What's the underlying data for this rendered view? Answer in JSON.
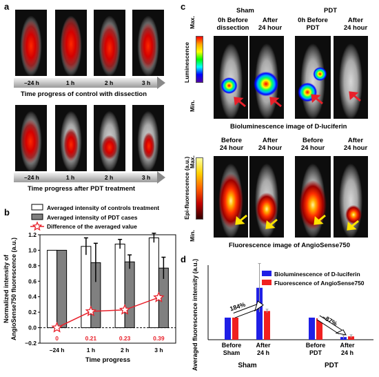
{
  "panel_a": {
    "label": "a",
    "row1_times": [
      "–24 h",
      "1 h",
      "2 h",
      "3 h"
    ],
    "row1_title": "Time progress of control with dissection",
    "row2_times": [
      "–24 h",
      "1 h",
      "2 h",
      "3 h"
    ],
    "row2_title": "Time progress after PDT treatment"
  },
  "panel_c": {
    "label": "c",
    "group_sham": "Sham",
    "group_pdt": "PDT",
    "col_headers_top": [
      "0h Before\ndissection",
      "After\n24 hour",
      "0h Before\nPDT",
      "After\n24 hour"
    ],
    "col_headers_bottom": [
      "Before\n24 hour",
      "After\n24 hour",
      "Before\n24 hour",
      "After\n24 hour"
    ],
    "lum_bar_title": "Luminescence",
    "lum_max": "Max.",
    "lum_min": "Min.",
    "lum_caption": "Bioluminescence image of D-luciferin",
    "epi_bar_title": "Epi-fluorescence (a.u.)",
    "epi_max": "Max.",
    "epi_min": "Min.",
    "epi_caption": "Fluorescence image of AngioSense750"
  },
  "colors": {
    "red_arrow": "#e8202a",
    "yellow_arrow": "#ffe400",
    "blue_bar": "#1f1fe6",
    "red_bar": "#f02020",
    "star": "#e8202a"
  },
  "chart_data": [
    {
      "panel": "b",
      "type": "bar",
      "label": "b",
      "categories": [
        "–24 h",
        "1 h",
        "2 h",
        "3 h"
      ],
      "xlabel": "Time progress",
      "ylabel": "Normalized intensity of AngioSense750 fluorescence (a.u.)",
      "ylim": [
        -0.2,
        1.2
      ],
      "yticks": [
        "−0.2",
        "0.0",
        "0.2",
        "0.4",
        "0.6",
        "0.8",
        "1.0",
        "1.2"
      ],
      "series": [
        {
          "name": "Averaged intensity of controls treatment",
          "values": [
            1.0,
            1.05,
            1.08,
            1.16
          ],
          "err": [
            0,
            0.11,
            0.06,
            0.06
          ]
        },
        {
          "name": "Averaged intensity of PDT cases",
          "values": [
            1.0,
            0.84,
            0.85,
            0.77
          ],
          "err": [
            0,
            0.25,
            0.09,
            0.14
          ]
        },
        {
          "name": "Difference of the averaged value",
          "values": [
            0.0,
            0.21,
            0.23,
            0.39
          ],
          "labels": [
            "0",
            "0.21",
            "0.23",
            "0.39"
          ]
        }
      ],
      "legend": "top"
    },
    {
      "panel": "d",
      "type": "bar",
      "label": "d",
      "groups": [
        "Sham",
        "PDT"
      ],
      "categories": [
        "Before\nSham",
        "After\n24 h",
        "Before\nPDT",
        "After\n24 h"
      ],
      "ylabel": "Averaged fluorescence intensity (a.u.)",
      "series": [
        {
          "name": "Bioluminescence of D-luciferin",
          "values": [
            1.0,
            2.35,
            1.0,
            0.12
          ],
          "err": [
            0,
            1.1,
            0,
            0.08
          ]
        },
        {
          "name": "Fluorescence of AngioSense750",
          "values": [
            1.0,
            1.3,
            0.97,
            0.15
          ],
          "err": [
            0,
            0.08,
            0,
            0.07
          ]
        }
      ],
      "annotations": [
        "184%",
        "–87%"
      ],
      "legend": "top-right"
    }
  ]
}
